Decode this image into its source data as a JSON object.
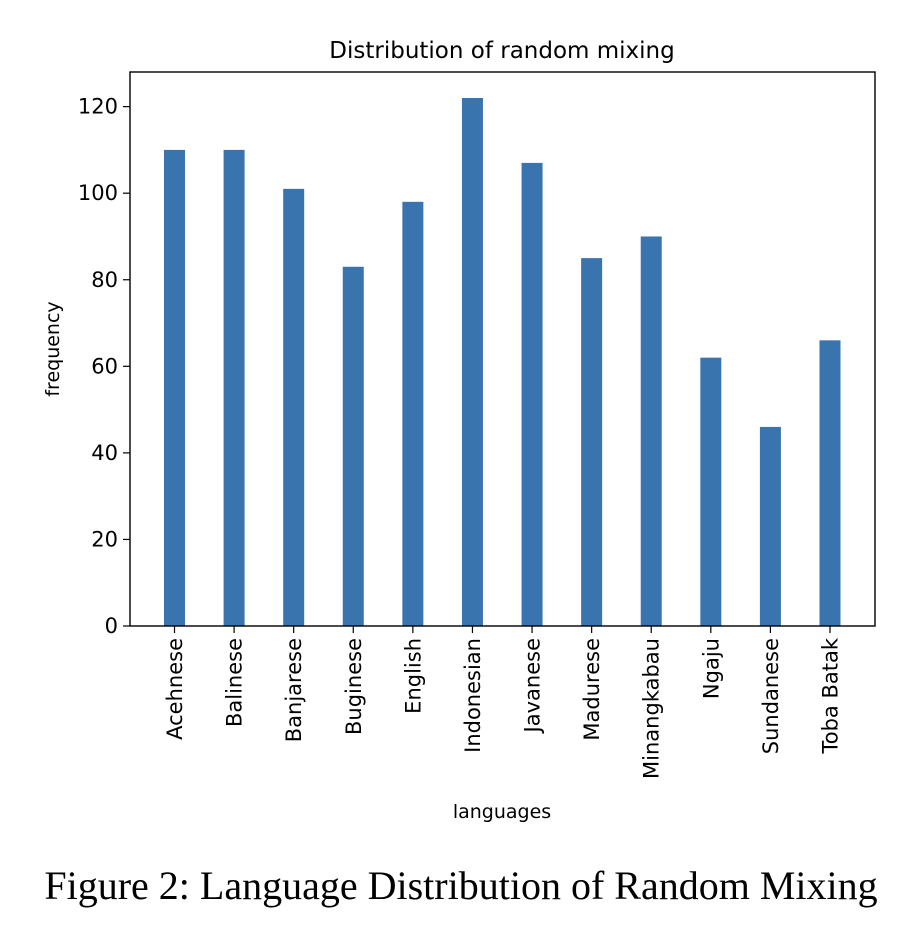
{
  "chart_data": {
    "type": "bar",
    "title": "Distribution of random mixing",
    "xlabel": "languages",
    "ylabel": "frequency",
    "categories": [
      "Acehnese",
      "Balinese",
      "Banjarese",
      "Buginese",
      "English",
      "Indonesian",
      "Javanese",
      "Madurese",
      "Minangkabau",
      "Ngaju",
      "Sundanese",
      "Toba Batak"
    ],
    "values": [
      110,
      110,
      101,
      83,
      98,
      122,
      107,
      85,
      90,
      62,
      46,
      66
    ],
    "ylim": [
      0,
      128
    ],
    "yticks": [
      0,
      20,
      40,
      60,
      80,
      100,
      120
    ],
    "grid": false,
    "bar_color": "#3a74ae"
  },
  "caption": "Figure 2: Language Distribution of Random Mixing"
}
